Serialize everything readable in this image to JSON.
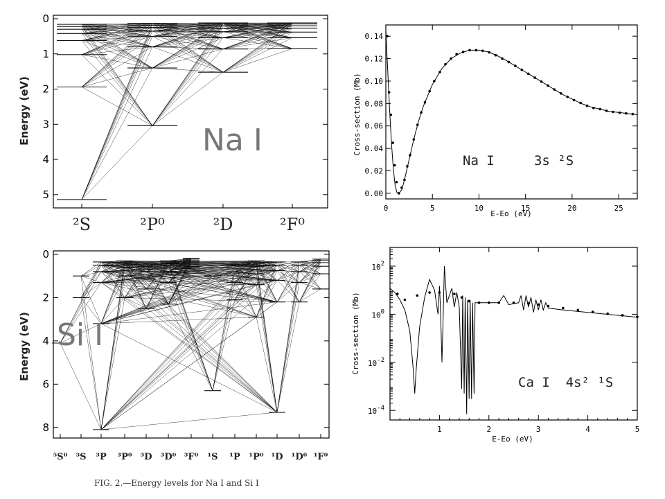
{
  "caption": "FIG. 2.—Energy levels for Na I and Si I",
  "chart_data": [
    {
      "type": "diagram",
      "kind": "grotrian",
      "species": "Na I",
      "ylabel": "Energy (eV)",
      "ylim": [
        0,
        5.2
      ],
      "yticks": [
        "0",
        "1",
        "2",
        "3",
        "4",
        "5"
      ],
      "terms": [
        "²S",
        "²P⁰",
        "²D",
        "²F⁰"
      ],
      "levels": {
        "²S": [
          5.14,
          1.94,
          1.02,
          0.62,
          0.42,
          0.3,
          0.22,
          0.16
        ],
        "²P⁰": [
          3.04,
          1.4,
          0.8,
          0.5,
          0.35,
          0.25,
          0.18,
          0.13
        ],
        "²D": [
          1.52,
          0.86,
          0.54,
          0.37,
          0.27,
          0.2,
          0.15,
          0.12
        ],
        "²F⁰": [
          0.85,
          0.54,
          0.38,
          0.27,
          0.2,
          0.15,
          0.12
        ]
      }
    },
    {
      "type": "line",
      "annotation": "Na I     3s ²S",
      "xlabel": "E-Eo (eV)",
      "ylabel": "Cross-section (Mb)",
      "xlim": [
        0,
        27
      ],
      "ylim": [
        -0.005,
        0.15
      ],
      "xticks": [
        0,
        5,
        10,
        15,
        20,
        25
      ],
      "yticks": [
        0.0,
        0.02,
        0.04,
        0.06,
        0.08,
        0.1,
        0.12,
        0.14
      ],
      "ytick_labels": [
        "0.00",
        "0.02",
        "0.04",
        "0.06",
        "0.08",
        "0.10",
        "0.12",
        "0.14"
      ],
      "curve": [
        {
          "x": 0.0,
          "y": 0.145
        },
        {
          "x": 0.2,
          "y": 0.11
        },
        {
          "x": 0.4,
          "y": 0.075
        },
        {
          "x": 0.6,
          "y": 0.045
        },
        {
          "x": 0.8,
          "y": 0.022
        },
        {
          "x": 1.0,
          "y": 0.007
        },
        {
          "x": 1.2,
          "y": 0.0005
        },
        {
          "x": 1.4,
          "y": 0.0
        },
        {
          "x": 1.7,
          "y": 0.003
        },
        {
          "x": 2.0,
          "y": 0.012
        },
        {
          "x": 2.5,
          "y": 0.03
        },
        {
          "x": 3.0,
          "y": 0.048
        },
        {
          "x": 3.5,
          "y": 0.064
        },
        {
          "x": 4.0,
          "y": 0.077
        },
        {
          "x": 5.0,
          "y": 0.097
        },
        {
          "x": 6.0,
          "y": 0.111
        },
        {
          "x": 7.0,
          "y": 0.12
        },
        {
          "x": 8.0,
          "y": 0.125
        },
        {
          "x": 9.0,
          "y": 0.1275
        },
        {
          "x": 10.0,
          "y": 0.1275
        },
        {
          "x": 11.0,
          "y": 0.126
        },
        {
          "x": 12.0,
          "y": 0.1225
        },
        {
          "x": 13.0,
          "y": 0.118
        },
        {
          "x": 14.0,
          "y": 0.113
        },
        {
          "x": 15.0,
          "y": 0.108
        },
        {
          "x": 16.0,
          "y": 0.103
        },
        {
          "x": 17.0,
          "y": 0.098
        },
        {
          "x": 18.0,
          "y": 0.093
        },
        {
          "x": 19.0,
          "y": 0.088
        },
        {
          "x": 20.0,
          "y": 0.084
        },
        {
          "x": 21.0,
          "y": 0.08
        },
        {
          "x": 22.0,
          "y": 0.077
        },
        {
          "x": 23.0,
          "y": 0.075
        },
        {
          "x": 24.0,
          "y": 0.073
        },
        {
          "x": 25.0,
          "y": 0.072
        },
        {
          "x": 26.0,
          "y": 0.071
        },
        {
          "x": 27.0,
          "y": 0.07
        }
      ],
      "points": [
        {
          "x": 0.15,
          "y": 0.14
        },
        {
          "x": 0.35,
          "y": 0.09
        },
        {
          "x": 0.55,
          "y": 0.07
        },
        {
          "x": 0.75,
          "y": 0.045
        },
        {
          "x": 0.95,
          "y": 0.025
        },
        {
          "x": 1.15,
          "y": 0.01
        },
        {
          "x": 1.4,
          "y": 0.0
        },
        {
          "x": 1.7,
          "y": 0.005
        },
        {
          "x": 2.0,
          "y": 0.012
        },
        {
          "x": 2.3,
          "y": 0.024
        },
        {
          "x": 2.6,
          "y": 0.034
        },
        {
          "x": 3.0,
          "y": 0.048
        },
        {
          "x": 3.4,
          "y": 0.061
        },
        {
          "x": 3.8,
          "y": 0.072
        },
        {
          "x": 4.2,
          "y": 0.081
        },
        {
          "x": 4.7,
          "y": 0.091
        },
        {
          "x": 5.2,
          "y": 0.1
        },
        {
          "x": 5.8,
          "y": 0.108
        },
        {
          "x": 6.4,
          "y": 0.115
        },
        {
          "x": 7.0,
          "y": 0.12
        },
        {
          "x": 7.6,
          "y": 0.124
        },
        {
          "x": 8.3,
          "y": 0.126
        },
        {
          "x": 9.0,
          "y": 0.1275
        },
        {
          "x": 9.7,
          "y": 0.1275
        },
        {
          "x": 10.4,
          "y": 0.127
        },
        {
          "x": 11.1,
          "y": 0.1255
        },
        {
          "x": 11.8,
          "y": 0.123
        },
        {
          "x": 12.5,
          "y": 0.12
        },
        {
          "x": 13.2,
          "y": 0.117
        },
        {
          "x": 13.9,
          "y": 0.1135
        },
        {
          "x": 14.6,
          "y": 0.11
        },
        {
          "x": 15.3,
          "y": 0.1065
        },
        {
          "x": 16.0,
          "y": 0.103
        },
        {
          "x": 16.7,
          "y": 0.0995
        },
        {
          "x": 17.4,
          "y": 0.096
        },
        {
          "x": 18.1,
          "y": 0.0925
        },
        {
          "x": 18.8,
          "y": 0.089
        },
        {
          "x": 19.5,
          "y": 0.086
        },
        {
          "x": 20.2,
          "y": 0.083
        },
        {
          "x": 20.9,
          "y": 0.0805
        },
        {
          "x": 21.6,
          "y": 0.078
        },
        {
          "x": 22.3,
          "y": 0.076
        },
        {
          "x": 23.0,
          "y": 0.075
        },
        {
          "x": 23.7,
          "y": 0.0735
        },
        {
          "x": 24.4,
          "y": 0.0725
        },
        {
          "x": 25.1,
          "y": 0.0718
        },
        {
          "x": 25.8,
          "y": 0.0712
        },
        {
          "x": 26.5,
          "y": 0.0706
        }
      ]
    },
    {
      "type": "diagram",
      "kind": "grotrian",
      "species": "Si I",
      "ylabel": "Energy (eV)",
      "ylim": [
        0,
        8.2
      ],
      "yticks": [
        "0",
        "2",
        "4",
        "6",
        "8"
      ],
      "terms": [
        "⁵S⁰",
        "³S",
        "³P",
        "³P⁰",
        "³D",
        "³D⁰",
        "³F⁰",
        "¹S",
        "¹P",
        "¹P⁰",
        "¹D",
        "¹D⁰",
        "¹F⁰"
      ],
      "levels": {
        "⁵S⁰": [
          4.1
        ],
        "³S": [
          2.0,
          1.0
        ],
        "³P": [
          8.1,
          3.2,
          1.3,
          0.8,
          0.5,
          0.35
        ],
        "³P⁰": [
          2.0,
          1.0,
          0.6,
          0.4,
          0.3
        ],
        "³D": [
          2.5,
          1.6,
          1.1,
          0.8,
          0.55,
          0.4
        ],
        "³D⁰": [
          2.3,
          1.3,
          0.8,
          0.5,
          0.4,
          0.3
        ],
        "³F⁰": [
          1.0,
          0.6,
          0.45,
          0.35,
          0.28,
          0.22,
          0.18
        ],
        "¹S": [
          6.3,
          1.0
        ],
        "¹P": [
          2.1,
          1.3,
          0.8,
          0.5
        ],
        "¹P⁰": [
          2.9,
          1.4,
          0.9,
          0.55,
          0.4,
          0.3
        ],
        "¹D": [
          7.3,
          2.2,
          1.2,
          0.75,
          0.5,
          0.35
        ],
        "¹D⁰": [
          2.2,
          1.3,
          0.8,
          0.5,
          0.35
        ],
        "¹F⁰": [
          1.6,
          0.9,
          0.55,
          0.38,
          0.28,
          0.22
        ]
      }
    },
    {
      "type": "line",
      "yscale": "log",
      "annotation": "Ca I  4s² ¹S",
      "xlabel": "E-Eo (eV)",
      "ylabel": "Cross-section (Mb)",
      "xlim": [
        0,
        5
      ],
      "ylim": [
        4e-05,
        600
      ],
      "xticks": [
        1,
        2,
        3,
        4,
        5
      ],
      "ytick_exponents": [
        2,
        0,
        -2,
        -4
      ],
      "curve": [
        {
          "x": 0.0,
          "y": 12
        },
        {
          "x": 0.1,
          "y": 8
        },
        {
          "x": 0.2,
          "y": 4
        },
        {
          "x": 0.3,
          "y": 1.5
        },
        {
          "x": 0.4,
          "y": 0.2
        },
        {
          "x": 0.47,
          "y": 0.005
        },
        {
          "x": 0.5,
          "y": 0.0005
        },
        {
          "x": 0.53,
          "y": 0.005
        },
        {
          "x": 0.6,
          "y": 0.3
        },
        {
          "x": 0.7,
          "y": 5
        },
        {
          "x": 0.8,
          "y": 28
        },
        {
          "x": 0.9,
          "y": 10
        },
        {
          "x": 0.97,
          "y": 1
        },
        {
          "x": 1.0,
          "y": 15
        },
        {
          "x": 1.02,
          "y": 2
        },
        {
          "x": 1.05,
          "y": 0.01
        },
        {
          "x": 1.07,
          "y": 0.3
        },
        {
          "x": 1.1,
          "y": 100
        },
        {
          "x": 1.15,
          "y": 3
        },
        {
          "x": 1.25,
          "y": 12
        },
        {
          "x": 1.3,
          "y": 2
        },
        {
          "x": 1.35,
          "y": 8
        },
        {
          "x": 1.4,
          "y": 2
        },
        {
          "x": 1.45,
          "y": 0.0008
        },
        {
          "x": 1.47,
          "y": 6
        },
        {
          "x": 1.5,
          "y": 0.0005
        },
        {
          "x": 1.52,
          "y": 5
        },
        {
          "x": 1.55,
          "y": 7e-05
        },
        {
          "x": 1.57,
          "y": 4
        },
        {
          "x": 1.6,
          "y": 0.0003
        },
        {
          "x": 1.62,
          "y": 4
        },
        {
          "x": 1.65,
          "y": 0.0003
        },
        {
          "x": 1.67,
          "y": 3
        },
        {
          "x": 1.7,
          "y": 0.0005
        },
        {
          "x": 1.72,
          "y": 3
        },
        {
          "x": 2.2,
          "y": 3
        },
        {
          "x": 2.3,
          "y": 6
        },
        {
          "x": 2.4,
          "y": 2.5
        },
        {
          "x": 2.6,
          "y": 3
        },
        {
          "x": 2.65,
          "y": 6
        },
        {
          "x": 2.7,
          "y": 1.5
        },
        {
          "x": 2.75,
          "y": 6
        },
        {
          "x": 2.8,
          "y": 2
        },
        {
          "x": 2.85,
          "y": 5
        },
        {
          "x": 2.9,
          "y": 1.2
        },
        {
          "x": 2.95,
          "y": 4
        },
        {
          "x": 3.0,
          "y": 1.5
        },
        {
          "x": 3.05,
          "y": 4
        },
        {
          "x": 3.1,
          "y": 1.5
        },
        {
          "x": 3.15,
          "y": 3
        },
        {
          "x": 3.2,
          "y": 1.8
        },
        {
          "x": 3.5,
          "y": 1.5
        },
        {
          "x": 4.0,
          "y": 1.2
        },
        {
          "x": 4.5,
          "y": 0.95
        },
        {
          "x": 5.0,
          "y": 0.75
        }
      ],
      "points": [
        {
          "x": 0.15,
          "y": 7
        },
        {
          "x": 0.3,
          "y": 4
        },
        {
          "x": 0.55,
          "y": 6
        },
        {
          "x": 0.8,
          "y": 8
        },
        {
          "x": 1.0,
          "y": 8
        },
        {
          "x": 1.3,
          "y": 7
        },
        {
          "x": 1.45,
          "y": 5
        },
        {
          "x": 1.6,
          "y": 3.5
        },
        {
          "x": 1.8,
          "y": 3
        },
        {
          "x": 2.0,
          "y": 3
        },
        {
          "x": 2.2,
          "y": 3
        },
        {
          "x": 2.5,
          "y": 3
        },
        {
          "x": 2.8,
          "y": 2.8
        },
        {
          "x": 3.0,
          "y": 2.5
        },
        {
          "x": 3.2,
          "y": 2.2
        },
        {
          "x": 3.5,
          "y": 1.8
        },
        {
          "x": 3.8,
          "y": 1.5
        },
        {
          "x": 4.1,
          "y": 1.25
        },
        {
          "x": 4.4,
          "y": 1.05
        },
        {
          "x": 4.7,
          "y": 0.9
        },
        {
          "x": 5.0,
          "y": 0.78
        }
      ]
    }
  ]
}
